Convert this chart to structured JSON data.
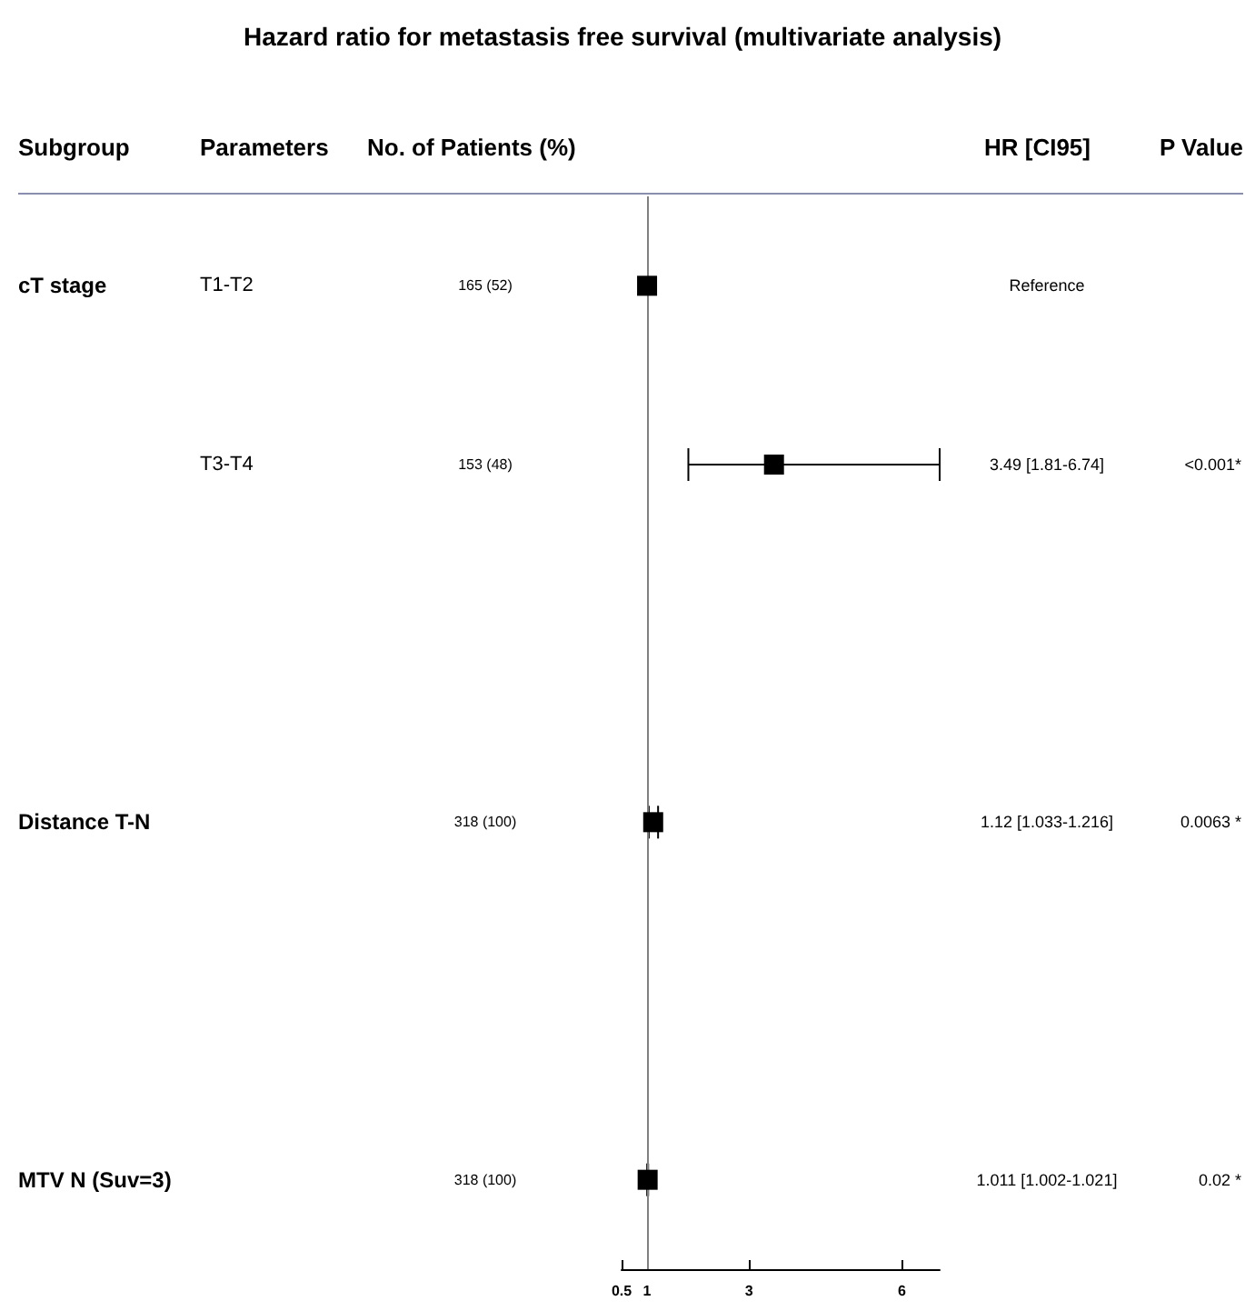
{
  "chart_data": {
    "type": "scatter",
    "orientation": "horizontal",
    "title": "Hazard ratio for metastasis free survival (multivariate analysis)",
    "categories": [
      null,
      null,
      null,
      null,
      null,
      null
    ],
    "values": [
      1,
      3.49,
      null,
      1.12,
      null,
      1.011
    ],
    "errors": [
      null,
      [
        1.81,
        6.74
      ],
      null,
      [
        1.033,
        1.216
      ],
      null,
      [
        1.002,
        1.021
      ]
    ],
    "color": "#000000",
    "marker": "square",
    "xlim": [
      0.5,
      6.74
    ],
    "xticks": [
      0.5,
      1,
      3,
      6
    ],
    "ref_lines": [
      {
        "axis": "x",
        "value": 1,
        "color": "#808080"
      }
    ],
    "grid": false,
    "annotations": [
      "Subgroup",
      "Parameters",
      "No. of Patients (%)",
      "HR [CI95]",
      "P Value",
      "cT stage",
      "Distance T-N",
      "MTV N (Suv=3)",
      "T1-T2",
      "T3-T4",
      "165 (52)",
      "153 (48)",
      "318 (100)",
      "318 (100)",
      "Reference",
      "3.49 [1.81-6.74]",
      "1.12 [1.033-1.216]",
      "1.011 [1.002-1.021]",
      "<0.001*",
      "0.0063 *",
      "0.02 *"
    ]
  }
}
